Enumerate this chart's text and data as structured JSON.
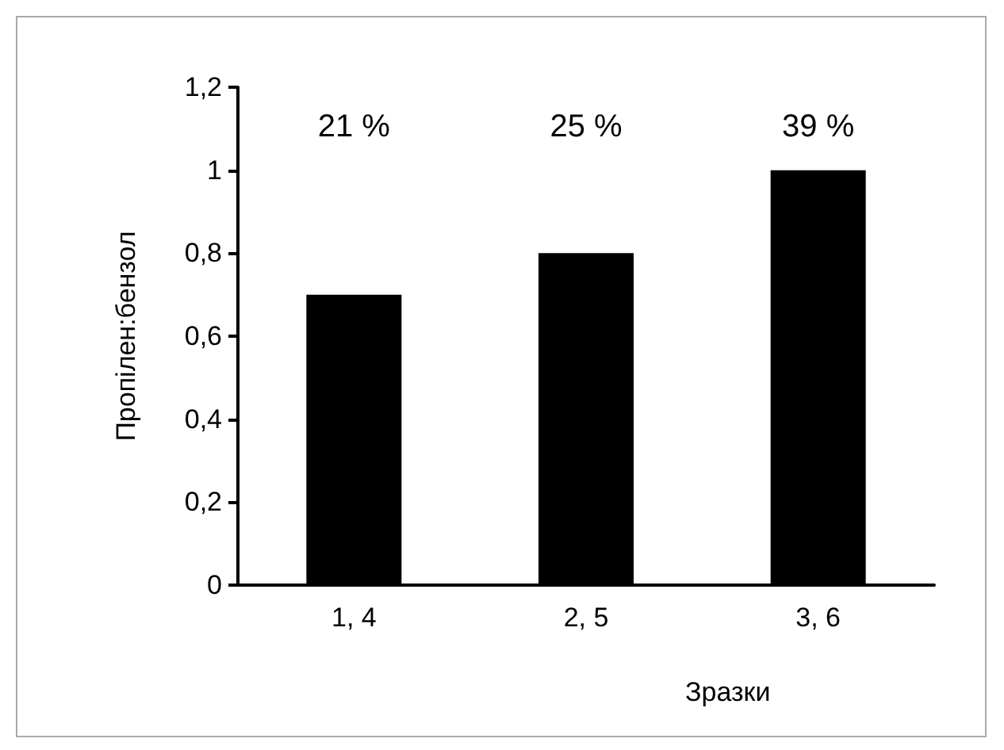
{
  "chart_data": {
    "type": "bar",
    "ylabel": "Пропілен:бензол",
    "xlabel": "Зразки",
    "categories": [
      "1, 4",
      "2, 5",
      "3, 6"
    ],
    "values": [
      0.7,
      0.8,
      1.0
    ],
    "color": "#000000",
    "ylim": [
      0,
      1.2
    ],
    "yticks": [
      {
        "value": 0,
        "label": "0"
      },
      {
        "value": 0.2,
        "label": "0,2"
      },
      {
        "value": 0.4,
        "label": "0,4"
      },
      {
        "value": 0.6,
        "label": "0,6"
      },
      {
        "value": 0.8,
        "label": "0,8"
      },
      {
        "value": 1,
        "label": "1"
      },
      {
        "value": 1.2,
        "label": "1,2"
      }
    ],
    "annotations": [
      "21 %",
      "25 %",
      "39 %"
    ],
    "grid": false
  }
}
